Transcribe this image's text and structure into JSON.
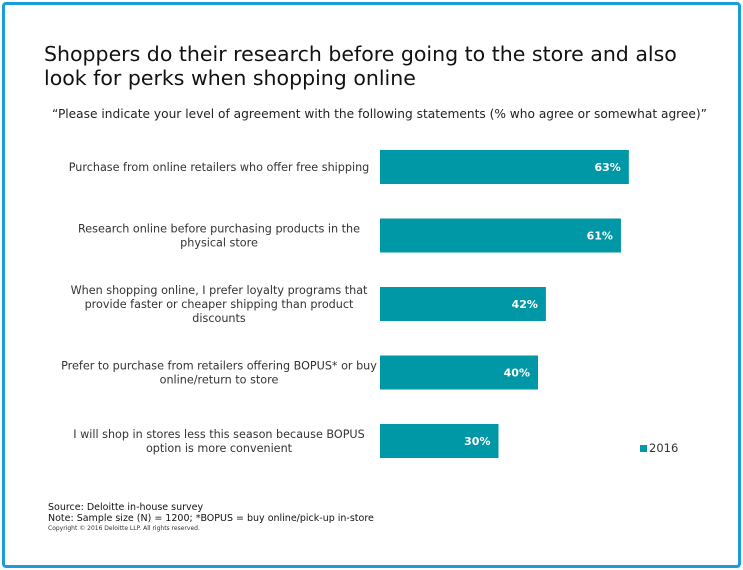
{
  "title": "Shoppers do their research before going to the store and also look for perks when shopping online",
  "subtitle": "“Please indicate your level of agreement with the following statements (% who agree or somewhat agree)”",
  "colors": {
    "bar": "#0097a7",
    "border": "#1a9ed9"
  },
  "chart_data": {
    "type": "bar",
    "orientation": "horizontal",
    "categories": [
      [
        "Purchase from online retailers who offer free shipping"
      ],
      [
        "Research online before purchasing products in the",
        "physical store"
      ],
      [
        "When shopping online, I prefer loyalty programs that",
        "provide faster or cheaper shipping than product",
        "discounts"
      ],
      [
        "Prefer to purchase from retailers offering BOPUS* or buy",
        "online/return to store"
      ],
      [
        "I will shop in stores less this season because BOPUS",
        "option is more convenient"
      ]
    ],
    "series": [
      {
        "name": "2016",
        "values": [
          63,
          61,
          42,
          40,
          30
        ]
      }
    ],
    "value_labels": [
      "63%",
      "61%",
      "42%",
      "40%",
      "30%"
    ],
    "xlim": [
      0,
      100
    ],
    "grid": false,
    "legend_position": "right"
  },
  "legend": {
    "label": "2016"
  },
  "footer": {
    "source": "Source: Deloitte in-house survey",
    "note": "Note:  Sample size (N) = 1200; *BOPUS = buy online/pick-up in-store",
    "copyright": "Copyright © 2016 Deloitte LLP. All rights reserved."
  }
}
